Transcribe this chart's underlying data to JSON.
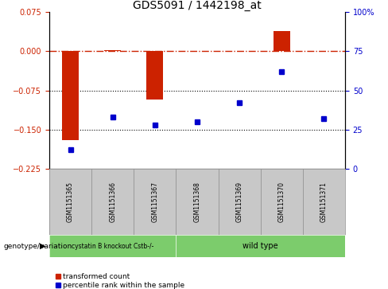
{
  "title": "GDS5091 / 1442198_at",
  "samples": [
    "GSM1151365",
    "GSM1151366",
    "GSM1151367",
    "GSM1151368",
    "GSM1151369",
    "GSM1151370",
    "GSM1151371"
  ],
  "transformed_counts": [
    -0.17,
    0.002,
    -0.093,
    0.0,
    0.001,
    0.038,
    0.001
  ],
  "percentile_ranks": [
    12,
    33,
    28,
    30,
    42,
    62,
    32
  ],
  "ylim_left": [
    -0.225,
    0.075
  ],
  "ylim_right": [
    0,
    100
  ],
  "yticks_left": [
    0.075,
    0,
    -0.075,
    -0.15,
    -0.225
  ],
  "yticks_right": [
    100,
    75,
    50,
    25,
    0
  ],
  "dotted_lines": [
    -0.075,
    -0.15
  ],
  "group0_label": "cystatin B knockout Cstb-/-",
  "group1_label": "wild type",
  "group0_n": 3,
  "group1_n": 4,
  "group_color": "#7ccc6c",
  "bar_color": "#cc2200",
  "dot_color": "#0000cc",
  "dashed_line_color": "#cc2200",
  "left_axis_color": "#cc2200",
  "right_axis_color": "#0000cc",
  "genotype_label": "genotype/variation",
  "legend_label_bar": "transformed count",
  "legend_label_dot": "percentile rank within the sample",
  "background_color": "#ffffff",
  "box_color": "#c8c8c8",
  "box_border_color": "#888888"
}
